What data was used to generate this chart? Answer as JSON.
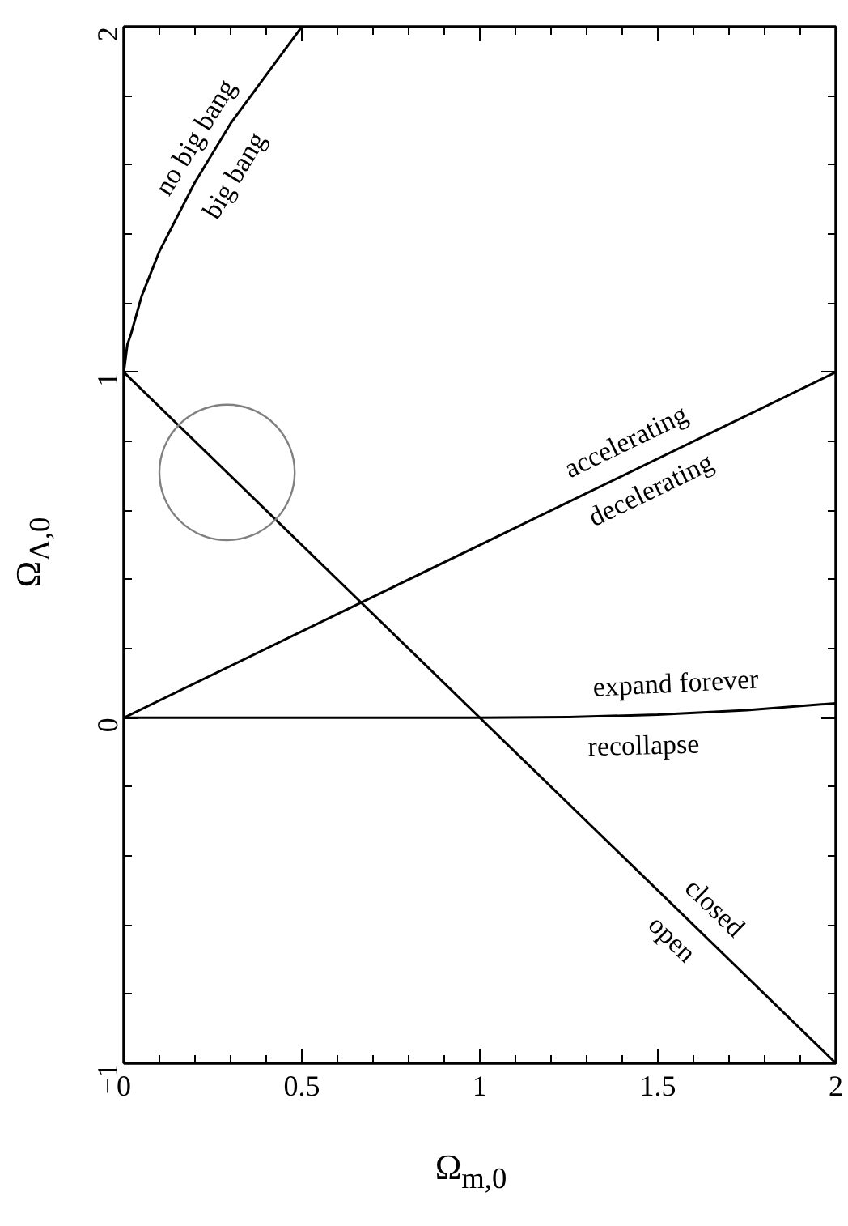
{
  "chart_data": {
    "type": "line",
    "xlabel": "Ω$_{m,0}$",
    "ylabel": "Ω$_{Λ,0}$",
    "xlim": [
      0,
      2
    ],
    "ylim": [
      -1,
      2
    ],
    "xticks": [
      0,
      {
        "value": 0.1,
        "label": null
      },
      {
        "value": 0.2,
        "label": null
      },
      {
        "value": 0.3,
        "label": null
      },
      {
        "value": 0.4,
        "label": null
      },
      0.5,
      {
        "value": 0.6,
        "label": null
      },
      {
        "value": 0.7,
        "label": null
      },
      {
        "value": 0.8,
        "label": null
      },
      {
        "value": 0.9,
        "label": null
      },
      1,
      {
        "value": 1.1,
        "label": null
      },
      {
        "value": 1.2,
        "label": null
      },
      {
        "value": 1.3,
        "label": null
      },
      {
        "value": 1.4,
        "label": null
      },
      1.5,
      {
        "value": 1.6,
        "label": null
      },
      {
        "value": 1.7,
        "label": null
      },
      {
        "value": 1.8,
        "label": null
      },
      {
        "value": 1.9,
        "label": null
      },
      2
    ],
    "yticks": [
      {
        "value": -1,
        "label": "−1"
      },
      {
        "value": -0.8,
        "label": null
      },
      {
        "value": -0.6,
        "label": null
      },
      {
        "value": -0.4,
        "label": null
      },
      {
        "value": -0.2,
        "label": null
      },
      0,
      {
        "value": 0.2,
        "label": null
      },
      {
        "value": 0.4,
        "label": null
      },
      {
        "value": 0.6,
        "label": null
      },
      {
        "value": 0.8,
        "label": null
      },
      1,
      {
        "value": 1.2,
        "label": null
      },
      {
        "value": 1.4,
        "label": null
      },
      {
        "value": 1.6,
        "label": null
      },
      {
        "value": 1.8,
        "label": null
      },
      2
    ],
    "grid": false,
    "line_style": "solid",
    "series": [
      {
        "color": "#000000",
        "x": [
          0,
          0.01,
          0.02,
          0.05,
          0.1,
          0.2,
          0.3,
          0.4,
          0.5
        ],
        "values": [
          1,
          1.08,
          1.11,
          1.22,
          1.35,
          1.55,
          1.72,
          1.86,
          2
        ]
      },
      {
        "color": "#000000",
        "x": [
          0,
          2
        ],
        "values": [
          1,
          -1
        ]
      },
      {
        "color": "#000000",
        "x": [
          0,
          2
        ],
        "values": [
          0,
          1
        ]
      },
      {
        "color": "#000000",
        "x": [
          0,
          1,
          1.25,
          1.5,
          1.75,
          2
        ],
        "values": [
          0,
          0,
          0.002,
          0.009,
          0.022,
          0.042
        ]
      },
      {
        "type": "bubble",
        "color": "#808080",
        "x": [
          0.29
        ],
        "values": [
          0.71
        ],
        "sizes": [
          1
        ]
      }
    ],
    "annotations": [
      "no big bang",
      "big bang",
      "accelerating",
      "decelerating",
      "expand forever",
      "recollapse",
      "closed",
      "open"
    ]
  }
}
